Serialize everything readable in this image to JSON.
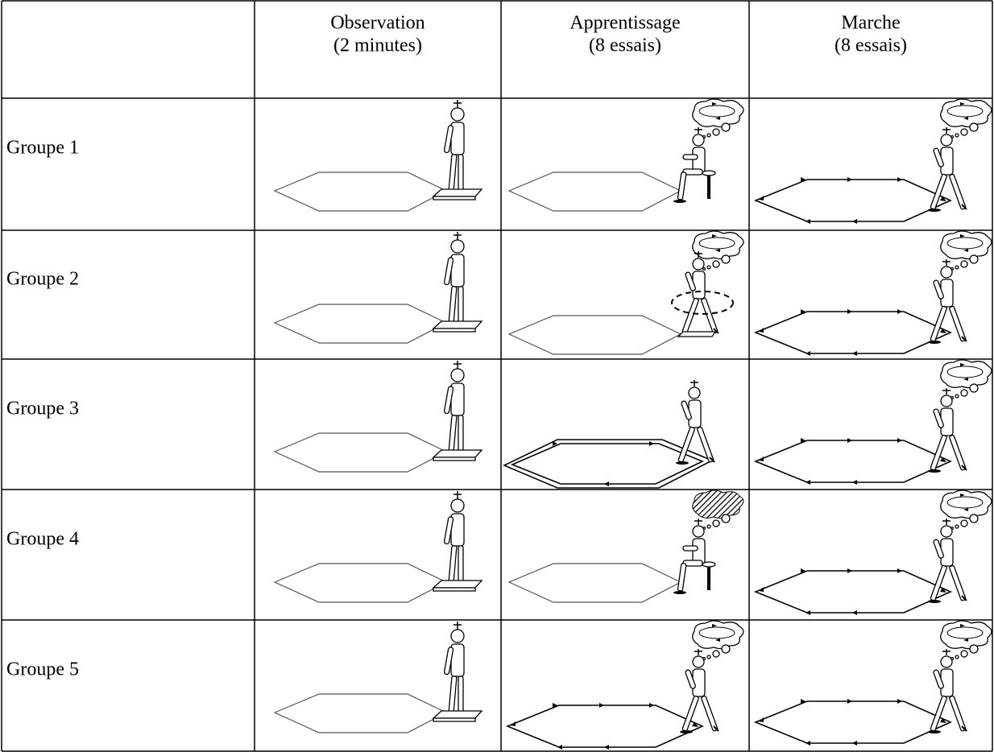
{
  "header": {
    "columns": [
      {
        "title": "Observation",
        "detail": "(2 minutes)"
      },
      {
        "title": "Apprentissage",
        "detail": "(8 essais)"
      },
      {
        "title": "Marche",
        "detail": "(8 essais)"
      }
    ]
  },
  "rows": [
    "Groupe 1",
    "Groupe 2",
    "Groupe 3",
    "Groupe 4",
    "Groupe 5"
  ]
}
